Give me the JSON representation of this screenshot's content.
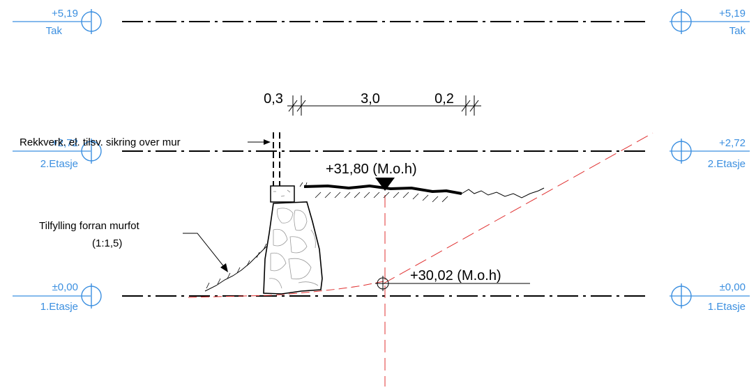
{
  "levels": {
    "tak": {
      "value": "+5,19",
      "name": "Tak"
    },
    "floor2": {
      "value": "+2,72",
      "name": "2.Etasje",
      "value_left": "+2,72"
    },
    "floor1": {
      "value": "±0,00",
      "name": "1.Etasje"
    }
  },
  "dimensions": {
    "d1": "0,3",
    "d2": "3,0",
    "d3": "0,2"
  },
  "elevations": {
    "top": "+31,80 (M.o.h)",
    "bottom": "+30,02 (M.o.h)"
  },
  "notes": {
    "railing": "Rekkverk. el. tilsv. sikring over mur",
    "fill_line1": "Tilfylling forran murfot",
    "fill_line2": "(1:1,5)"
  },
  "colors": {
    "level_blue": "#3b8fe0",
    "dash_red": "#e03030",
    "line": "#000000"
  }
}
